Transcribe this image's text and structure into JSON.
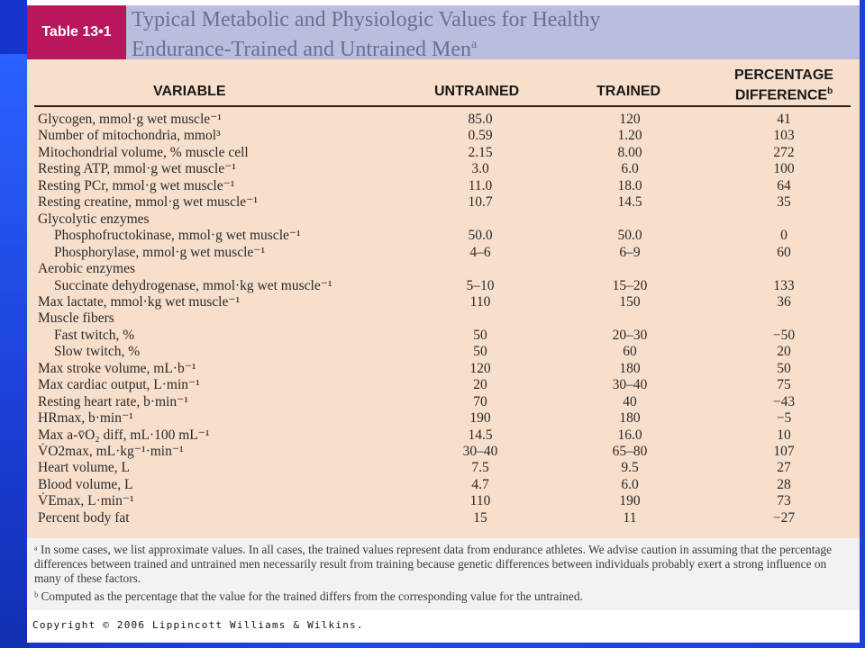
{
  "header": {
    "table_label": "Table 13•1",
    "title_line1": "Typical Metabolic and Physiologic Values for Healthy",
    "title_line2": "Endurance-Trained and Untrained Men",
    "title_note": "a"
  },
  "columns": {
    "variable": "VARIABLE",
    "untrained": "UNTRAINED",
    "trained": "TRAINED",
    "pct_line1": "PERCENTAGE",
    "pct_line2": "DIFFERENCE",
    "pct_note": "b"
  },
  "rows": [
    {
      "variable": "Glycogen, mmol·g wet muscle⁻¹",
      "untrained": "85.0",
      "trained": "120",
      "pct": "41",
      "indent": false
    },
    {
      "variable": "Number of mitochondria, mmol³",
      "untrained": "0.59",
      "trained": "1.20",
      "pct": "103",
      "indent": false
    },
    {
      "variable": "Mitochondrial volume, % muscle cell",
      "untrained": "2.15",
      "trained": "8.00",
      "pct": "272",
      "indent": false
    },
    {
      "variable": "Resting ATP, mmol·g wet muscle⁻¹",
      "untrained": "3.0",
      "trained": "6.0",
      "pct": "100",
      "indent": false
    },
    {
      "variable": "Resting PCr, mmol·g wet muscle⁻¹",
      "untrained": "11.0",
      "trained": "18.0",
      "pct": "64",
      "indent": false
    },
    {
      "variable": "Resting creatine, mmol·g wet muscle⁻¹",
      "untrained": "10.7",
      "trained": "14.5",
      "pct": "35",
      "indent": false
    },
    {
      "variable": "Glycolytic enzymes",
      "untrained": "",
      "trained": "",
      "pct": "",
      "indent": false
    },
    {
      "variable": "Phosphofructokinase, mmol·g wet muscle⁻¹",
      "untrained": "50.0",
      "trained": "50.0",
      "pct": "0",
      "indent": true
    },
    {
      "variable": "Phosphorylase, mmol·g wet muscle⁻¹",
      "untrained": "4–6",
      "trained": "6–9",
      "pct": "60",
      "indent": true
    },
    {
      "variable": "Aerobic enzymes",
      "untrained": "",
      "trained": "",
      "pct": "",
      "indent": false
    },
    {
      "variable": "Succinate dehydrogenase, mmol·kg wet muscle⁻¹",
      "untrained": "5–10",
      "trained": "15–20",
      "pct": "133",
      "indent": true
    },
    {
      "variable": "Max lactate, mmol·kg wet muscle⁻¹",
      "untrained": "110",
      "trained": "150",
      "pct": "36",
      "indent": false
    },
    {
      "variable": "Muscle fibers",
      "untrained": "",
      "trained": "",
      "pct": "",
      "indent": false
    },
    {
      "variable": "Fast twitch, %",
      "untrained": "50",
      "trained": "20–30",
      "pct": "−50",
      "indent": true
    },
    {
      "variable": "Slow twitch, %",
      "untrained": "50",
      "trained": "60",
      "pct": "20",
      "indent": true
    },
    {
      "variable": "Max stroke volume, mL·b⁻¹",
      "untrained": "120",
      "trained": "180",
      "pct": "50",
      "indent": false
    },
    {
      "variable": "Max cardiac output, L·min⁻¹",
      "untrained": "20",
      "trained": "30–40",
      "pct": "75",
      "indent": false
    },
    {
      "variable": "Resting heart rate, b·min⁻¹",
      "untrained": "70",
      "trained": "40",
      "pct": "−43",
      "indent": false
    },
    {
      "variable": "HRmax, b·min⁻¹",
      "untrained": "190",
      "trained": "180",
      "pct": "−5",
      "indent": false
    },
    {
      "variable": "Max a-v̄O₂ diff, mL·100 mL⁻¹",
      "untrained": "14.5",
      "trained": "16.0",
      "pct": "10",
      "indent": false
    },
    {
      "variable": "V̇O2max, mL·kg⁻¹·min⁻¹",
      "untrained": "30–40",
      "trained": "65–80",
      "pct": "107",
      "indent": false
    },
    {
      "variable": "Heart volume, L",
      "untrained": "7.5",
      "trained": "9.5",
      "pct": "27",
      "indent": false
    },
    {
      "variable": "Blood volume, L",
      "untrained": "4.7",
      "trained": "6.0",
      "pct": "28",
      "indent": false
    },
    {
      "variable": "V̇Emax, L·min⁻¹",
      "untrained": "110",
      "trained": "190",
      "pct": "73",
      "indent": false
    },
    {
      "variable": "Percent body fat",
      "untrained": "15",
      "trained": "11",
      "pct": "−27",
      "indent": false
    }
  ],
  "footnotes": {
    "a": "ᵃ In some cases, we list approximate values. In all cases, the trained values represent data from endurance athletes. We advise caution in assuming that the percentage differences between trained and untrained men necessarily result from training because genetic differences between individuals probably exert a strong influence on many of these factors.",
    "b": "ᵇ Computed as the percentage that the value for the trained differs from the corresponding value for the untrained."
  },
  "copyright": "Copyright © 2006 Lippincott Williams & Wilkins.",
  "colors": {
    "background": "#1f48e8",
    "table_label_bg": "#b8175e",
    "header_bg": "#b9bedd",
    "title_text": "#6a6f95",
    "table_bg": "#f7dfcc",
    "footnote_bg": "#f2f2f2"
  }
}
